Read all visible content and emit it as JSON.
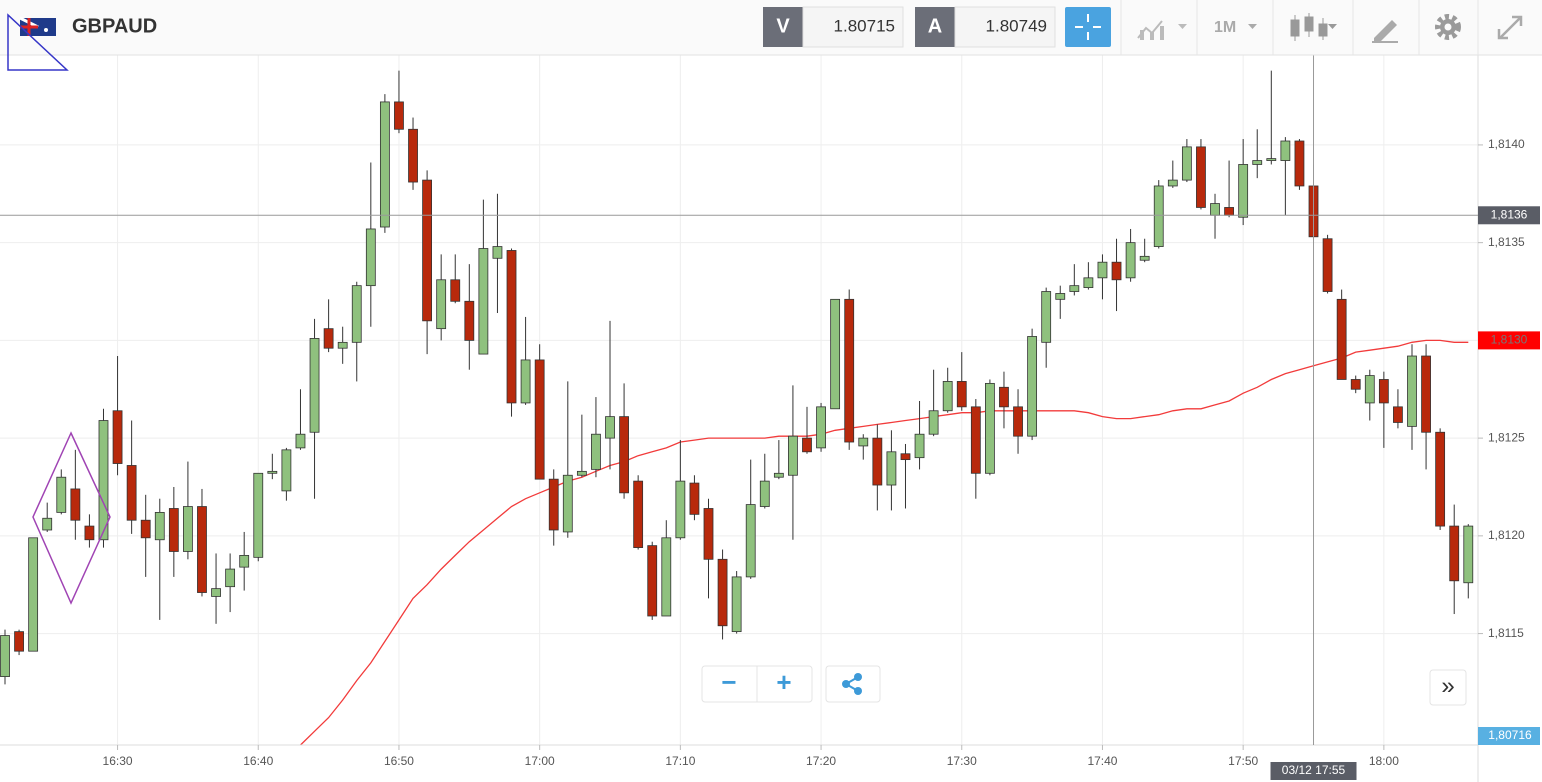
{
  "toolbar": {
    "symbol": "GBPAUD",
    "bid_label": "V",
    "bid": "1.80715",
    "ask_label": "A",
    "ask": "1.80749",
    "timeframe": "1M"
  },
  "chart_data": {
    "type": "candlestick",
    "x": [
      "16:22",
      "16:23",
      "16:24",
      "16:25",
      "16:26",
      "16:27",
      "16:28",
      "16:29",
      "16:30",
      "16:31",
      "16:32",
      "16:33",
      "16:34",
      "16:35",
      "16:36",
      "16:37",
      "16:38",
      "16:39",
      "16:40",
      "16:41",
      "16:42",
      "16:43",
      "16:44",
      "16:45",
      "16:46",
      "16:47",
      "16:48",
      "16:49",
      "16:50",
      "16:51",
      "16:52",
      "16:53",
      "16:54",
      "16:55",
      "16:56",
      "16:57",
      "16:58",
      "16:59",
      "17:00",
      "17:01",
      "17:02",
      "17:03",
      "17:04",
      "17:05",
      "17:06",
      "17:07",
      "17:08",
      "17:09",
      "17:10",
      "17:11",
      "17:12",
      "17:13",
      "17:14",
      "17:15",
      "17:16",
      "17:17",
      "17:18",
      "17:19",
      "17:20",
      "17:21",
      "17:22",
      "17:23",
      "17:24",
      "17:25",
      "17:26",
      "17:27",
      "17:28",
      "17:29",
      "17:30",
      "17:31",
      "17:32",
      "17:33",
      "17:34",
      "17:35",
      "17:36",
      "17:37",
      "17:38",
      "17:39",
      "17:40",
      "17:41",
      "17:42",
      "17:43",
      "17:44",
      "17:45",
      "17:46",
      "17:47",
      "17:48",
      "17:49",
      "17:50",
      "17:51",
      "17:52",
      "17:53",
      "17:54",
      "17:55",
      "17:56",
      "17:57",
      "17:58",
      "17:59",
      "18:00",
      "18:01",
      "18:02",
      "18:03",
      "18:04",
      "18:05",
      "18:06"
    ],
    "open": [
      1.81128,
      1.81151,
      1.81141,
      1.81203,
      1.81212,
      1.81224,
      1.81205,
      1.81198,
      1.81264,
      1.81236,
      1.81208,
      1.81198,
      1.81214,
      1.81192,
      1.81215,
      1.81169,
      1.81174,
      1.81184,
      1.81189,
      1.81232,
      1.81223,
      1.81245,
      1.81253,
      1.81306,
      1.81296,
      1.81299,
      1.81328,
      1.81358,
      1.81422,
      1.81408,
      1.81382,
      1.81306,
      1.81331,
      1.8132,
      1.81293,
      1.81342,
      1.81346,
      1.81268,
      1.8129,
      1.81229,
      1.81202,
      1.81231,
      1.81234,
      1.8125,
      1.81261,
      1.81228,
      1.81195,
      1.81159,
      1.81199,
      1.81227,
      1.81214,
      1.81188,
      1.81151,
      1.81179,
      1.81215,
      1.8123,
      1.81231,
      1.8125,
      1.81245,
      1.81265,
      1.81321,
      1.81246,
      1.8125,
      1.81226,
      1.81242,
      1.8124,
      1.81252,
      1.81264,
      1.81279,
      1.81266,
      1.81232,
      1.81276,
      1.81266,
      1.81251,
      1.81299,
      1.81321,
      1.81325,
      1.81327,
      1.81332,
      1.8134,
      1.81332,
      1.81341,
      1.81348,
      1.81379,
      1.81382,
      1.81399,
      1.81364,
      1.81368,
      1.81363,
      1.8139,
      1.81392,
      1.81392,
      1.81402,
      1.81379,
      1.81352,
      1.81321,
      1.8128,
      1.81268,
      1.8128,
      1.81266,
      1.81256,
      1.81292,
      1.81253,
      1.81205,
      1.81176
    ],
    "high": [
      1.81152,
      1.81152,
      1.81199,
      1.81217,
      1.81234,
      1.81244,
      1.81211,
      1.81265,
      1.81292,
      1.81259,
      1.81221,
      1.81219,
      1.81225,
      1.81238,
      1.81224,
      1.81191,
      1.81191,
      1.81202,
      1.81232,
      1.81242,
      1.81245,
      1.81275,
      1.81311,
      1.81321,
      1.81307,
      1.8133,
      1.81391,
      1.81426,
      1.81438,
      1.81414,
      1.81387,
      1.81344,
      1.81344,
      1.81339,
      1.81372,
      1.81375,
      1.81347,
      1.81312,
      1.81298,
      1.81234,
      1.81279,
      1.81262,
      1.81271,
      1.8131,
      1.81278,
      1.81231,
      1.81197,
      1.81208,
      1.81249,
      1.81231,
      1.81219,
      1.81193,
      1.81182,
      1.81239,
      1.81242,
      1.81249,
      1.81277,
      1.81266,
      1.81268,
      1.81321,
      1.81326,
      1.81252,
      1.81257,
      1.81254,
      1.81247,
      1.81269,
      1.81285,
      1.81286,
      1.81294,
      1.8127,
      1.8128,
      1.81284,
      1.81275,
      1.81306,
      1.81327,
      1.81328,
      1.81339,
      1.8134,
      1.81344,
      1.81352,
      1.81357,
      1.81352,
      1.81382,
      1.81392,
      1.81403,
      1.81403,
      1.81375,
      1.81392,
      1.81403,
      1.81408,
      1.81438,
      1.81404,
      1.81403,
      1.8139,
      1.81354,
      1.81326,
      1.81282,
      1.81285,
      1.81284,
      1.81275,
      1.81298,
      1.81298,
      1.81255,
      1.81216,
      1.81206
    ],
    "low": [
      1.81124,
      1.81139,
      1.81141,
      1.81202,
      1.81211,
      1.81198,
      1.81194,
      1.81194,
      1.81231,
      1.81201,
      1.81179,
      1.81157,
      1.81179,
      1.81188,
      1.81169,
      1.81155,
      1.81161,
      1.81172,
      1.81187,
      1.81229,
      1.81218,
      1.81244,
      1.81219,
      1.81294,
      1.81288,
      1.81279,
      1.81307,
      1.81355,
      1.81406,
      1.81377,
      1.81293,
      1.813,
      1.81319,
      1.81285,
      1.81293,
      1.81314,
      1.81261,
      1.81267,
      1.81229,
      1.81195,
      1.81199,
      1.8123,
      1.8123,
      1.81234,
      1.81219,
      1.81193,
      1.81157,
      1.81159,
      1.81198,
      1.81208,
      1.81168,
      1.81147,
      1.8115,
      1.81178,
      1.81214,
      1.81229,
      1.81198,
      1.81242,
      1.81243,
      1.81265,
      1.81244,
      1.81239,
      1.81213,
      1.81213,
      1.81214,
      1.81234,
      1.81251,
      1.81263,
      1.81264,
      1.81219,
      1.81231,
      1.81255,
      1.81242,
      1.81249,
      1.81286,
      1.81311,
      1.81323,
      1.81326,
      1.81321,
      1.81315,
      1.8133,
      1.8134,
      1.81347,
      1.81378,
      1.81381,
      1.81367,
      1.81352,
      1.81363,
      1.81359,
      1.81383,
      1.8139,
      1.81364,
      1.81377,
      1.81352,
      1.81324,
      1.8128,
      1.81273,
      1.81259,
      1.81245,
      1.81255,
      1.81244,
      1.81234,
      1.81203,
      1.8116,
      1.81168
    ],
    "close": [
      1.81149,
      1.81141,
      1.81199,
      1.81209,
      1.8123,
      1.81208,
      1.81198,
      1.81259,
      1.81237,
      1.81208,
      1.81199,
      1.81212,
      1.81192,
      1.81215,
      1.81171,
      1.81173,
      1.81183,
      1.8119,
      1.81232,
      1.81233,
      1.81244,
      1.81252,
      1.81301,
      1.81296,
      1.81299,
      1.81328,
      1.81357,
      1.81422,
      1.81408,
      1.81381,
      1.8131,
      1.81331,
      1.8132,
      1.813,
      1.81347,
      1.81348,
      1.81268,
      1.8129,
      1.81229,
      1.81203,
      1.81231,
      1.81233,
      1.81252,
      1.81261,
      1.81222,
      1.81194,
      1.81159,
      1.81199,
      1.81228,
      1.81211,
      1.81188,
      1.81154,
      1.81179,
      1.81216,
      1.81228,
      1.81232,
      1.81251,
      1.81243,
      1.81266,
      1.81321,
      1.81248,
      1.8125,
      1.81226,
      1.81243,
      1.81239,
      1.81252,
      1.81264,
      1.81279,
      1.81266,
      1.81232,
      1.81278,
      1.81266,
      1.81251,
      1.81302,
      1.81325,
      1.81324,
      1.81328,
      1.81332,
      1.8134,
      1.81331,
      1.8135,
      1.81343,
      1.81379,
      1.81382,
      1.81399,
      1.81368,
      1.8137,
      1.81364,
      1.8139,
      1.81392,
      1.81393,
      1.81402,
      1.81379,
      1.81353,
      1.81325,
      1.8128,
      1.81275,
      1.81282,
      1.81268,
      1.81258,
      1.81292,
      1.81253,
      1.81205,
      1.81177,
      1.81205
    ],
    "up_color": "#8fc17e",
    "down_color": "#b8290c",
    "moving_average": {
      "color": "#f23b3b",
      "values": [
        null,
        null,
        null,
        null,
        null,
        null,
        null,
        null,
        null,
        null,
        null,
        null,
        null,
        null,
        null,
        null,
        null,
        null,
        null,
        null,
        null,
        1.81093,
        1.811,
        1.81107,
        1.81116,
        1.81126,
        1.81135,
        1.81146,
        1.81157,
        1.81168,
        1.81175,
        1.81183,
        1.8119,
        1.81197,
        1.81203,
        1.81209,
        1.81215,
        1.81219,
        1.81222,
        1.81225,
        1.81228,
        1.8123,
        1.81233,
        1.81236,
        1.81238,
        1.81241,
        1.81243,
        1.81245,
        1.81248,
        1.81249,
        1.8125,
        1.8125,
        1.8125,
        1.8125,
        1.8125,
        1.81251,
        1.81251,
        1.81251,
        1.81252,
        1.81254,
        1.81255,
        1.81256,
        1.81257,
        1.81258,
        1.81259,
        1.8126,
        1.81261,
        1.81262,
        1.81263,
        1.81263,
        1.81264,
        1.81264,
        1.81264,
        1.81264,
        1.81264,
        1.81264,
        1.81264,
        1.81263,
        1.81261,
        1.8126,
        1.8126,
        1.81261,
        1.81262,
        1.81264,
        1.81265,
        1.81265,
        1.81267,
        1.81269,
        1.81273,
        1.81276,
        1.8128,
        1.81283,
        1.81285,
        1.81287,
        1.81289,
        1.81291,
        1.81294,
        1.81295,
        1.81296,
        1.81297,
        1.81299,
        1.813,
        1.813,
        1.81299,
        1.81299
      ]
    },
    "ylim": [
      1.81093,
      1.81446
    ],
    "yticks": [
      {
        "value": 1.8115,
        "label": "1,8115"
      },
      {
        "value": 1.812,
        "label": "1,8120"
      },
      {
        "value": 1.8125,
        "label": "1,8125"
      },
      {
        "value": 1.813,
        "label": "1,8130"
      },
      {
        "value": 1.8135,
        "label": "1,8135"
      },
      {
        "value": 1.814,
        "label": "1,8140"
      }
    ],
    "xticks": [
      "16:30",
      "16:40",
      "16:50",
      "17:00",
      "17:10",
      "17:20",
      "17:30",
      "17:40",
      "17:50",
      "18:00"
    ],
    "grid": true,
    "crosshair": {
      "x_label": "03/12 17:55",
      "y": {
        "value": 1.81364,
        "label": "1,8136"
      }
    },
    "last_ma_label": {
      "value": 1.813,
      "label": "1,8130"
    },
    "bid_badge": "1,80716"
  },
  "controls": {
    "zoom_out": "−",
    "zoom_in": "+",
    "expand": "»"
  }
}
